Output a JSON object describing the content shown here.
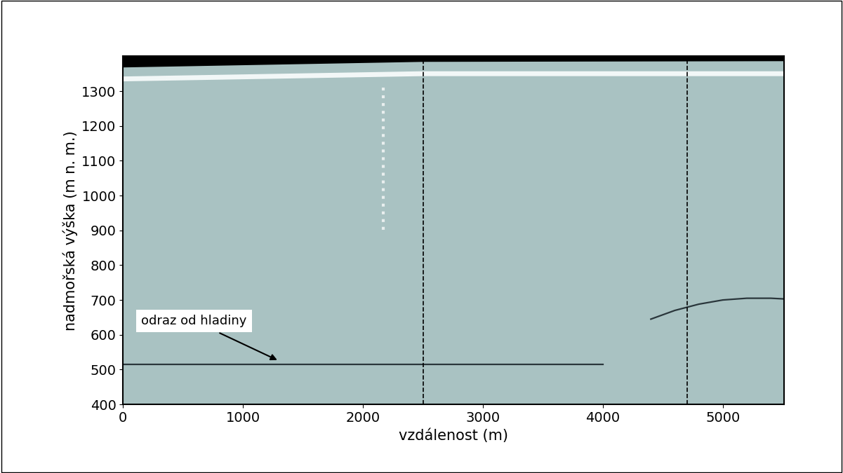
{
  "chart_data": {
    "type": "radargram",
    "xlabel": "vzdálenost (m)",
    "ylabel": "nadmořská výška (m n. m.)",
    "xlim": [
      0,
      5510
    ],
    "ylim": [
      400,
      1400
    ],
    "xticks": [
      0,
      1000,
      2000,
      3000,
      4000,
      5000
    ],
    "yticks": [
      400,
      500,
      600,
      700,
      800,
      900,
      1000,
      1100,
      1200,
      1300
    ],
    "grid": false,
    "color": "#a9c2c2",
    "series": [
      {
        "type": "area",
        "color": "#000000",
        "x": [
          0,
          2500,
          5510
        ],
        "values": [
          1369,
          1385,
          1387
        ]
      },
      {
        "type": "line",
        "color": "#f2f7f7",
        "line_style": "solid",
        "x": [
          0,
          2500,
          5510
        ],
        "values": [
          1335,
          1350,
          1350
        ]
      },
      {
        "type": "line",
        "color": "#e8eeee",
        "line_style": "dotted",
        "x": [
          2170,
          2170
        ],
        "values": [
          1310,
          900
        ]
      },
      {
        "type": "line",
        "color": "#2a363b",
        "line_style": "solid",
        "x": [
          0,
          1000,
          2000,
          3000,
          4000
        ],
        "values": [
          515,
          515,
          515,
          515,
          515
        ]
      },
      {
        "type": "line",
        "color": "#2a363b",
        "line_style": "solid",
        "x": [
          4400,
          4600,
          4800,
          5000,
          5200,
          5400,
          5510
        ],
        "values": [
          645,
          670,
          688,
          700,
          705,
          705,
          703
        ]
      }
    ],
    "vlines": {
      "x": [
        2500,
        4700
      ],
      "color": "#000000",
      "line_style": "dashed"
    },
    "annotations": [
      {
        "text": "odraz od hladiny",
        "x": 1300,
        "y": 525,
        "text_x": 150,
        "text_y": 640
      }
    ]
  }
}
